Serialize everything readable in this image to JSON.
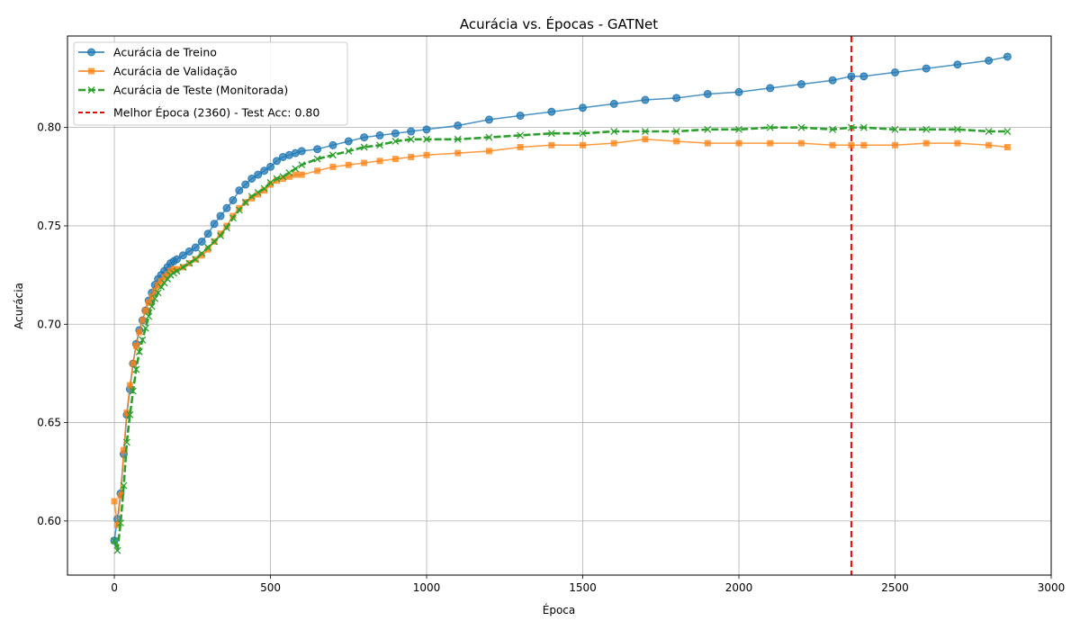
{
  "chart_data": {
    "type": "line",
    "title": "Acurácia vs. Épocas - GATNet",
    "xlabel": "Época",
    "ylabel": "Acurácia",
    "xlim": [
      -150,
      3000
    ],
    "ylim": [
      0.5725,
      0.8465
    ],
    "xticks": [
      0,
      500,
      1000,
      1500,
      2000,
      2500,
      3000
    ],
    "yticks": [
      0.6,
      0.65,
      0.7,
      0.75,
      0.8
    ],
    "xtick_labels": [
      "0",
      "500",
      "1000",
      "1500",
      "2000",
      "2500",
      "3000"
    ],
    "ytick_labels": [
      "0.60",
      "0.65",
      "0.70",
      "0.75",
      "0.80"
    ],
    "grid": true,
    "legend_position": "top-left",
    "series": [
      {
        "name": "Acurácia de Treino",
        "color": "#1f77b4",
        "marker": "circle",
        "style": "solid",
        "x": [
          0,
          10,
          20,
          30,
          40,
          50,
          60,
          70,
          80,
          90,
          100,
          110,
          120,
          130,
          140,
          150,
          160,
          170,
          180,
          190,
          200,
          220,
          240,
          260,
          280,
          300,
          320,
          340,
          360,
          380,
          400,
          420,
          440,
          460,
          480,
          500,
          520,
          540,
          560,
          580,
          600,
          650,
          700,
          750,
          800,
          850,
          900,
          950,
          1000,
          1100,
          1200,
          1300,
          1400,
          1500,
          1600,
          1700,
          1800,
          1900,
          2000,
          2100,
          2200,
          2300,
          2360,
          2400,
          2500,
          2600,
          2700,
          2800,
          2860
        ],
        "y": [
          0.59,
          0.601,
          0.614,
          0.634,
          0.654,
          0.667,
          0.68,
          0.69,
          0.697,
          0.702,
          0.707,
          0.712,
          0.716,
          0.72,
          0.723,
          0.725,
          0.727,
          0.729,
          0.731,
          0.732,
          0.733,
          0.735,
          0.737,
          0.739,
          0.742,
          0.746,
          0.751,
          0.755,
          0.759,
          0.763,
          0.768,
          0.771,
          0.774,
          0.776,
          0.778,
          0.78,
          0.783,
          0.785,
          0.786,
          0.787,
          0.788,
          0.789,
          0.791,
          0.793,
          0.795,
          0.796,
          0.797,
          0.798,
          0.799,
          0.801,
          0.804,
          0.806,
          0.808,
          0.81,
          0.812,
          0.814,
          0.815,
          0.817,
          0.818,
          0.82,
          0.822,
          0.824,
          0.826,
          0.826,
          0.828,
          0.83,
          0.832,
          0.834,
          0.836
        ]
      },
      {
        "name": "Acurácia de Validação",
        "color": "#ff7f0e",
        "marker": "square",
        "style": "solid",
        "x": [
          0,
          10,
          20,
          30,
          40,
          50,
          60,
          70,
          80,
          90,
          100,
          110,
          120,
          130,
          140,
          150,
          160,
          170,
          180,
          190,
          200,
          220,
          240,
          260,
          280,
          300,
          320,
          340,
          360,
          380,
          400,
          420,
          440,
          460,
          480,
          500,
          520,
          540,
          560,
          580,
          600,
          650,
          700,
          750,
          800,
          850,
          900,
          950,
          1000,
          1100,
          1200,
          1300,
          1400,
          1500,
          1600,
          1700,
          1800,
          1900,
          2000,
          2100,
          2200,
          2300,
          2360,
          2400,
          2500,
          2600,
          2700,
          2800,
          2860
        ],
        "y": [
          0.61,
          0.598,
          0.613,
          0.636,
          0.655,
          0.669,
          0.68,
          0.689,
          0.696,
          0.702,
          0.707,
          0.711,
          0.714,
          0.717,
          0.72,
          0.722,
          0.724,
          0.725,
          0.727,
          0.728,
          0.728,
          0.729,
          0.731,
          0.733,
          0.735,
          0.738,
          0.742,
          0.746,
          0.75,
          0.755,
          0.759,
          0.762,
          0.764,
          0.766,
          0.768,
          0.771,
          0.773,
          0.774,
          0.775,
          0.776,
          0.776,
          0.778,
          0.78,
          0.781,
          0.782,
          0.783,
          0.784,
          0.785,
          0.786,
          0.787,
          0.788,
          0.79,
          0.791,
          0.791,
          0.792,
          0.794,
          0.793,
          0.792,
          0.792,
          0.792,
          0.792,
          0.791,
          0.791,
          0.791,
          0.791,
          0.792,
          0.792,
          0.791,
          0.79
        ]
      },
      {
        "name": "Acurácia de Teste (Monitorada)",
        "color": "#2ca02c",
        "marker": "x",
        "style": "dashed",
        "x": [
          0,
          10,
          20,
          30,
          40,
          50,
          60,
          70,
          80,
          90,
          100,
          110,
          120,
          130,
          140,
          150,
          160,
          170,
          180,
          190,
          200,
          220,
          240,
          260,
          280,
          300,
          320,
          340,
          360,
          380,
          400,
          420,
          440,
          460,
          480,
          500,
          520,
          540,
          560,
          580,
          600,
          650,
          700,
          750,
          800,
          850,
          900,
          950,
          1000,
          1100,
          1200,
          1300,
          1400,
          1500,
          1600,
          1700,
          1800,
          1900,
          2000,
          2100,
          2200,
          2300,
          2360,
          2400,
          2500,
          2600,
          2700,
          2800,
          2860
        ],
        "y": [
          0.59,
          0.585,
          0.599,
          0.618,
          0.64,
          0.654,
          0.666,
          0.677,
          0.686,
          0.692,
          0.698,
          0.704,
          0.709,
          0.713,
          0.716,
          0.719,
          0.721,
          0.723,
          0.725,
          0.726,
          0.727,
          0.729,
          0.731,
          0.733,
          0.736,
          0.739,
          0.742,
          0.745,
          0.749,
          0.754,
          0.758,
          0.762,
          0.765,
          0.767,
          0.769,
          0.772,
          0.774,
          0.775,
          0.777,
          0.779,
          0.781,
          0.784,
          0.786,
          0.788,
          0.79,
          0.791,
          0.793,
          0.794,
          0.794,
          0.794,
          0.795,
          0.796,
          0.797,
          0.797,
          0.798,
          0.798,
          0.798,
          0.799,
          0.799,
          0.8,
          0.8,
          0.799,
          0.8,
          0.8,
          0.799,
          0.799,
          0.799,
          0.798,
          0.798
        ]
      }
    ],
    "vline": {
      "x": 2360,
      "color": "#ff0000",
      "style": "dashed",
      "label": "Melhor Época (2360) - Test Acc: 0.80"
    }
  }
}
